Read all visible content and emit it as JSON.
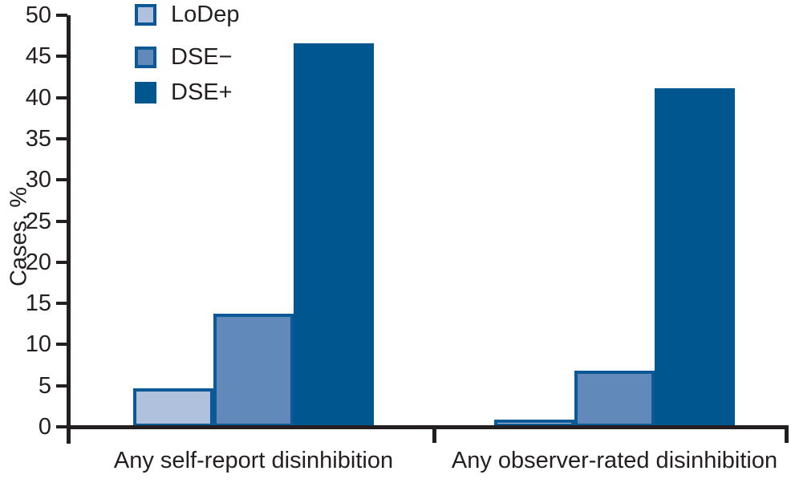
{
  "chart_data": {
    "type": "bar",
    "title": "",
    "ylabel": "Cases, %",
    "xlabel": "",
    "ylim": [
      0,
      50
    ],
    "yticks": [
      0,
      5,
      10,
      15,
      20,
      25,
      30,
      35,
      40,
      45,
      50
    ],
    "grid": false,
    "legend_position": "top-left",
    "categories": [
      "Any self-report disinhibition",
      "Any observer-rated disinhibition"
    ],
    "series": [
      {
        "name": "LoDep",
        "values": [
          4.7,
          0.9
        ],
        "fill": "#b0c1de",
        "border": "#0d5896"
      },
      {
        "name": "DSE−",
        "values": [
          13.7,
          6.8
        ],
        "fill": "#6189b9",
        "border": "#0d5896"
      },
      {
        "name": "DSE+",
        "values": [
          46.6,
          41.1
        ],
        "fill": "#00568f",
        "border": "#00568f"
      }
    ]
  },
  "colors": {
    "axis": "#231f20",
    "text": "#231f20",
    "background": "#ffffff",
    "accent_dark_blue": "#00568f",
    "accent_mid_blue": "#6189b9",
    "accent_light_blue": "#b0c1de"
  }
}
